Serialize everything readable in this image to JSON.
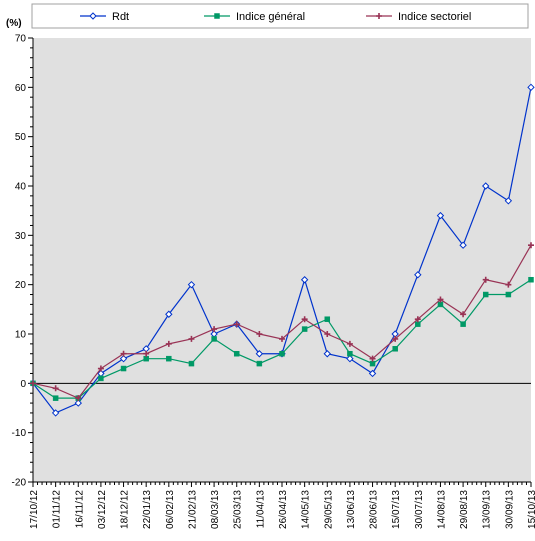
{
  "chart_data": {
    "type": "line",
    "title": "",
    "ylabel": "(%)",
    "xlabel": "",
    "ylim": [
      -20,
      70
    ],
    "yticks": [
      -20,
      -10,
      0,
      10,
      20,
      30,
      40,
      50,
      60,
      70
    ],
    "grid": false,
    "legend": "top",
    "categories": [
      "17/10/12",
      "01/11/12",
      "16/11/12",
      "03/12/12",
      "18/12/12",
      "22/01/13",
      "06/02/13",
      "21/02/13",
      "08/03/13",
      "25/03/13",
      "11/04/13",
      "26/04/13",
      "14/05/13",
      "29/05/13",
      "13/06/13",
      "28/06/13",
      "15/07/13",
      "30/07/13",
      "14/08/13",
      "29/08/13",
      "13/09/13",
      "30/09/13",
      "15/10/13"
    ],
    "series": [
      {
        "name": "Rdt",
        "color": "#0033cc",
        "marker": "diamond",
        "values": [
          0,
          -6,
          -4,
          2,
          5,
          7,
          14,
          20,
          10,
          12,
          6,
          6,
          21,
          6,
          5,
          2,
          10,
          22,
          34,
          28,
          40,
          37,
          60
        ]
      },
      {
        "name": "Indice général",
        "color": "#009966",
        "marker": "square",
        "values": [
          0,
          -3,
          -3,
          1,
          3,
          5,
          5,
          4,
          9,
          6,
          4,
          6,
          11,
          13,
          6,
          4,
          7,
          12,
          16,
          12,
          18,
          18,
          21
        ]
      },
      {
        "name": "Indice sectoriel",
        "color": "#993355",
        "marker": "plus",
        "values": [
          0,
          -1,
          -3,
          3,
          6,
          6,
          8,
          9,
          11,
          12,
          10,
          9,
          13,
          10,
          8,
          5,
          9,
          13,
          17,
          14,
          21,
          20,
          28
        ]
      }
    ]
  }
}
